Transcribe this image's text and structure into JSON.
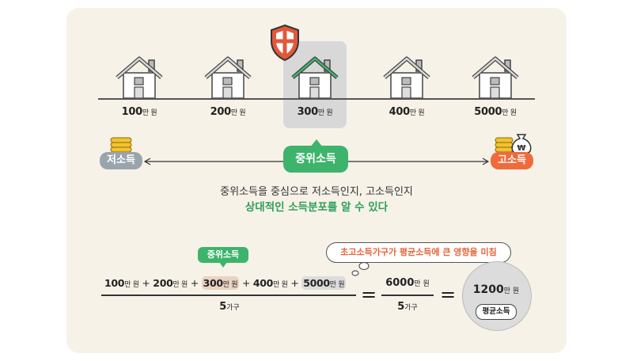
{
  "incomes": [
    {
      "num": "100",
      "unit": "만 원"
    },
    {
      "num": "200",
      "unit": "만 원"
    },
    {
      "num": "300",
      "unit": "만 원"
    },
    {
      "num": "400",
      "unit": "만 원"
    },
    {
      "num": "5000",
      "unit": "만 원"
    }
  ],
  "labels": {
    "low": "저소득",
    "median": "중위소득",
    "high": "고소득",
    "currency_symbol": "₩"
  },
  "caption": {
    "line1": "중위소득을 중심으로 저소득인지, 고소득인지",
    "line2": "상대적인 소득분포를 알 수 있다"
  },
  "equation": {
    "median_tag": "중위소득",
    "callout": "초고소득가구가 평균소득에 큰 영향을 미침",
    "plus": "+",
    "equals": "=",
    "denominator_num": "5",
    "denominator_unit": "가구",
    "fraction2_num": "6000",
    "fraction2_unit": "만 원",
    "result_num": "1200",
    "result_unit": "만 원",
    "result_label": "평균소득"
  },
  "colors": {
    "background": "#f7f2e8",
    "median_green": "#3db36b",
    "high_orange": "#f06a3c",
    "low_gray": "#9aa4ac",
    "shield_red": "#e2583a",
    "coin_gold": "#f2c230"
  }
}
